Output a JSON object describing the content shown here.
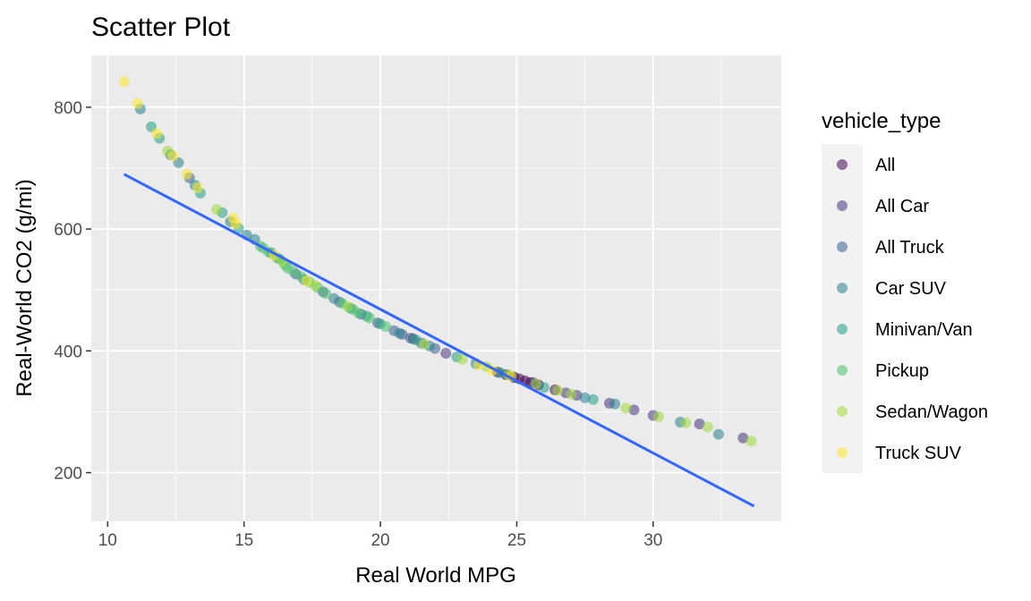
{
  "chart_data": {
    "type": "scatter",
    "title": "Scatter Plot",
    "xlabel": "Real World MPG",
    "ylabel": "Real-World CO2 (g/mi)",
    "xlim": [
      9.4,
      34.7
    ],
    "ylim": [
      120,
      885
    ],
    "x_ticks": [
      10,
      15,
      20,
      25,
      30
    ],
    "y_ticks": [
      200,
      400,
      600,
      800
    ],
    "grid": true,
    "legend": {
      "title": "vehicle_type",
      "position": "right"
    },
    "point_opacity": 0.55,
    "series": [
      {
        "name": "All",
        "color": "#440154",
        "points": [
          [
            24.9,
            357
          ],
          [
            25.1,
            354
          ],
          [
            25.3,
            351
          ],
          [
            25.5,
            348
          ],
          [
            24.6,
            361
          ],
          [
            24.3,
            365
          ],
          [
            26.4,
            336
          ],
          [
            25.8,
            344
          ]
        ]
      },
      {
        "name": "All Car",
        "color": "#46337E",
        "points": [
          [
            26.8,
            331
          ],
          [
            28.4,
            314
          ],
          [
            29.3,
            303
          ],
          [
            30.0,
            294
          ],
          [
            31.7,
            280
          ],
          [
            33.3,
            257
          ],
          [
            27.2,
            327
          ],
          [
            24.9,
            356
          ],
          [
            25.6,
            348
          ],
          [
            22.4,
            396
          ],
          [
            21.2,
            420
          ]
        ]
      },
      {
        "name": "All Truck",
        "color": "#365C8D",
        "points": [
          [
            20.5,
            433
          ],
          [
            21.1,
            421
          ],
          [
            22.0,
            404
          ],
          [
            21.5,
            413
          ],
          [
            19.3,
            460
          ],
          [
            18.5,
            480
          ],
          [
            17.9,
            497
          ],
          [
            16.9,
            526
          ],
          [
            13.0,
            684
          ],
          [
            19.9,
            446
          ],
          [
            20.8,
            427
          ]
        ]
      },
      {
        "name": "Car SUV",
        "color": "#277F8E",
        "points": [
          [
            11.2,
            797
          ],
          [
            12.3,
            722
          ],
          [
            12.6,
            709
          ],
          [
            14.5,
            612
          ],
          [
            15.1,
            590
          ],
          [
            15.4,
            583
          ],
          [
            16.0,
            561
          ],
          [
            17.2,
            517
          ],
          [
            18.3,
            486
          ],
          [
            20.7,
            429
          ],
          [
            21.8,
            408
          ],
          [
            23.5,
            379
          ],
          [
            27.5,
            323
          ],
          [
            28.6,
            313
          ],
          [
            31.0,
            283
          ],
          [
            32.4,
            263
          ],
          [
            13.2,
            672
          ]
        ]
      },
      {
        "name": "Minivan/Van",
        "color": "#1FA187",
        "points": [
          [
            11.6,
            768
          ],
          [
            11.9,
            749
          ],
          [
            13.4,
            659
          ],
          [
            14.2,
            627
          ],
          [
            14.8,
            601
          ],
          [
            18.9,
            470
          ],
          [
            19.5,
            457
          ],
          [
            20.0,
            444
          ],
          [
            21.3,
            418
          ],
          [
            22.8,
            390
          ],
          [
            26.0,
            340
          ],
          [
            27.8,
            320
          ],
          [
            24.4,
            364
          ],
          [
            16.3,
            551
          ]
        ]
      },
      {
        "name": "Pickup",
        "color": "#4AC16D",
        "points": [
          [
            15.7,
            569
          ],
          [
            15.9,
            562
          ],
          [
            16.2,
            553
          ],
          [
            16.5,
            541
          ],
          [
            16.8,
            531
          ],
          [
            17.1,
            522
          ],
          [
            17.4,
            513
          ],
          [
            17.7,
            504
          ],
          [
            18.0,
            494
          ],
          [
            18.6,
            478
          ],
          [
            19.0,
            468
          ],
          [
            19.2,
            462
          ],
          [
            19.6,
            454
          ],
          [
            20.2,
            440
          ],
          [
            15.6,
            572
          ],
          [
            16.6,
            536
          ]
        ]
      },
      {
        "name": "Sedan/Wagon",
        "color": "#A0DA39",
        "points": [
          [
            26.5,
            335
          ],
          [
            27.0,
            329
          ],
          [
            29.0,
            306
          ],
          [
            30.2,
            292
          ],
          [
            31.2,
            282
          ],
          [
            32.0,
            275
          ],
          [
            33.6,
            252
          ],
          [
            23.0,
            386
          ],
          [
            23.9,
            374
          ],
          [
            24.7,
            361
          ],
          [
            25.7,
            346
          ],
          [
            12.2,
            728
          ],
          [
            14.0,
            632
          ],
          [
            16.4,
            547
          ],
          [
            17.6,
            507
          ],
          [
            18.8,
            473
          ],
          [
            21.6,
            411
          ]
        ]
      },
      {
        "name": "Truck SUV",
        "color": "#FDE725",
        "points": [
          [
            10.6,
            842
          ],
          [
            11.1,
            806
          ],
          [
            11.8,
            757
          ],
          [
            12.4,
            720
          ],
          [
            12.9,
            690
          ],
          [
            13.3,
            668
          ],
          [
            14.6,
            618
          ],
          [
            14.7,
            609
          ],
          [
            23.6,
            377
          ],
          [
            24.1,
            368
          ],
          [
            24.8,
            358
          ],
          [
            16.1,
            557
          ],
          [
            17.3,
            515
          ]
        ]
      }
    ],
    "trend_line": {
      "color": "#3366FF",
      "points": [
        [
          10.6,
          690
        ],
        [
          33.7,
          145
        ]
      ]
    }
  }
}
